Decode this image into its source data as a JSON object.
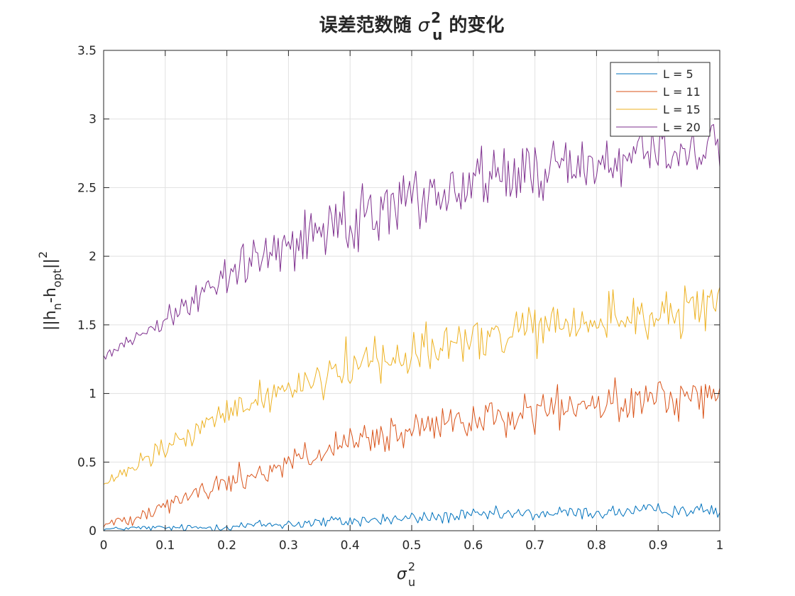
{
  "chart_data": {
    "type": "line",
    "title": {
      "prefix": "误差范数随 ",
      "symbol": "σ",
      "sup": "2",
      "sub": "u",
      "suffix": " 的变化"
    },
    "xlabel": {
      "symbol": "σ",
      "sup": "2",
      "sub": "u"
    },
    "ylabel": {
      "a": "||h",
      "b": "n",
      "c": "-h",
      "d": "opt",
      "e": "||",
      "f": "2"
    },
    "xlim": [
      0,
      1
    ],
    "ylim": [
      0,
      3.5
    ],
    "x_ticks": [
      "0",
      "0.1",
      "0.2",
      "0.3",
      "0.4",
      "0.5",
      "0.6",
      "0.7",
      "0.8",
      "0.9",
      "1"
    ],
    "y_ticks": [
      "0",
      "0.5",
      "1",
      "1.5",
      "2",
      "2.5",
      "3",
      "3.5"
    ],
    "grid": true,
    "legend_position": "top-right",
    "x": [
      0,
      0.05,
      0.1,
      0.15,
      0.2,
      0.25,
      0.3,
      0.35,
      0.4,
      0.45,
      0.5,
      0.55,
      0.6,
      0.65,
      0.7,
      0.75,
      0.8,
      0.85,
      0.9,
      0.95,
      1.0
    ],
    "series": [
      {
        "name": "L = 5",
        "color": "#0072BD",
        "amp": 0.025,
        "values": [
          0.01,
          0.02,
          0.02,
          0.02,
          0.03,
          0.04,
          0.05,
          0.06,
          0.07,
          0.08,
          0.09,
          0.1,
          0.11,
          0.12,
          0.12,
          0.13,
          0.13,
          0.14,
          0.15,
          0.15,
          0.14
        ]
      },
      {
        "name": "L = 11",
        "color": "#D95319",
        "amp": 0.07,
        "values": [
          0.04,
          0.1,
          0.2,
          0.27,
          0.35,
          0.42,
          0.5,
          0.56,
          0.62,
          0.67,
          0.72,
          0.76,
          0.8,
          0.83,
          0.86,
          0.89,
          0.91,
          0.93,
          0.96,
          0.98,
          0.99
        ]
      },
      {
        "name": "L = 15",
        "color": "#EDB120",
        "amp": 0.09,
        "values": [
          0.33,
          0.46,
          0.6,
          0.72,
          0.85,
          0.96,
          1.05,
          1.13,
          1.2,
          1.26,
          1.31,
          1.35,
          1.39,
          1.42,
          1.46,
          1.49,
          1.52,
          1.55,
          1.58,
          1.6,
          1.62
        ]
      },
      {
        "name": "L = 20",
        "color": "#7E2F8E",
        "amp": 0.11,
        "values": [
          1.29,
          1.4,
          1.55,
          1.7,
          1.85,
          1.98,
          2.1,
          2.2,
          2.29,
          2.37,
          2.43,
          2.49,
          2.54,
          2.58,
          2.62,
          2.66,
          2.69,
          2.72,
          2.75,
          2.77,
          2.79
        ]
      }
    ]
  }
}
